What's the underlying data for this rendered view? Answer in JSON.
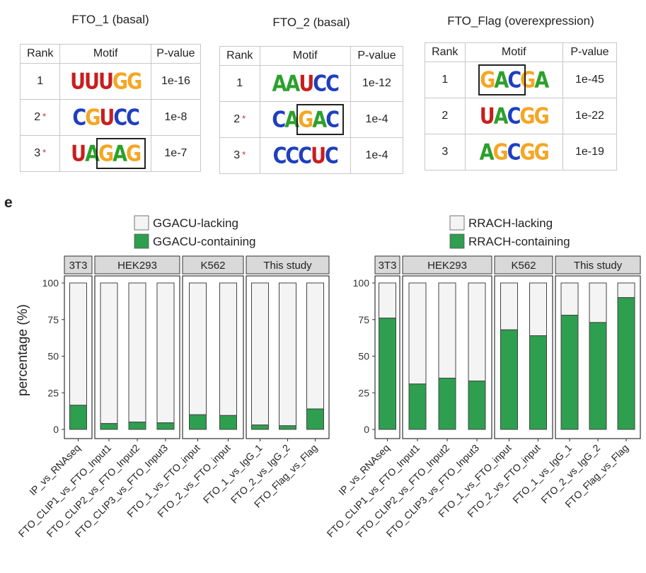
{
  "panel_label": "e",
  "motif_tables": [
    {
      "title": "FTO_1 (basal)",
      "headers": [
        "Rank",
        "Motif",
        "P-value"
      ],
      "rows": [
        {
          "rank": "1",
          "star": "",
          "motif": "UUUGG",
          "pvalue": "1e-16"
        },
        {
          "rank": "2",
          "star": "*",
          "motif": "CGUCC",
          "pvalue": "1e-8"
        },
        {
          "rank": "3",
          "star": "*",
          "motif": "UAGAG",
          "pvalue": "1e-7"
        }
      ]
    },
    {
      "title": "FTO_2 (basal)",
      "headers": [
        "Rank",
        "Motif",
        "P-value"
      ],
      "rows": [
        {
          "rank": "1",
          "star": "",
          "motif": "AAUCC",
          "pvalue": "1e-12"
        },
        {
          "rank": "2",
          "star": "*",
          "motif": "CAGAC",
          "pvalue": "1e-4"
        },
        {
          "rank": "3",
          "star": "*",
          "motif": "CCCUC",
          "pvalue": "1e-4"
        }
      ]
    },
    {
      "title": "FTO_Flag (overexpression)",
      "headers": [
        "Rank",
        "Motif",
        "P-value"
      ],
      "rows": [
        {
          "rank": "1",
          "star": "",
          "motif": "GACGA",
          "pvalue": "1e-45"
        },
        {
          "rank": "2",
          "star": "",
          "motif": "UACGG",
          "pvalue": "1e-22"
        },
        {
          "rank": "3",
          "star": "",
          "motif": "AGCGG",
          "pvalue": "1e-19"
        }
      ]
    }
  ],
  "nucleotide_colors": {
    "A": "#2ca02c",
    "C": "#1f3fbf",
    "G": "#f5a623",
    "U": "#c81e1e"
  },
  "chart_data": [
    {
      "type": "bar",
      "stacked": true,
      "legend": [
        "GGACU-lacking",
        "GGACU-containing"
      ],
      "legend_position": "top",
      "ylabel": "percentage (%)",
      "ylim": [
        0,
        100
      ],
      "yticks": [
        "0",
        "25",
        "50",
        "75",
        "100"
      ],
      "facets": [
        {
          "label": "3T3",
          "categories": [
            "IP_vs_RNAseq"
          ]
        },
        {
          "label": "HEK293",
          "categories": [
            "FTO_CLIP1_vs_FTO_Input1",
            "FTO_CLIP2_vs_FTO_Input2",
            "FTO_CLIP3_vs_FTO_Input3"
          ]
        },
        {
          "label": "K562",
          "categories": [
            "FTO_1_vs_FTO_input",
            "FTO_2_vs_FTO_input"
          ]
        },
        {
          "label": "This study",
          "categories": [
            "FTO_1_vs_IgG_1",
            "FTO_2_vs_IgG_2",
            "FTO_Flag_vs_Flag"
          ]
        }
      ],
      "series": [
        {
          "name": "GGACU-containing",
          "color": "#2e9e4f",
          "values": [
            16.5,
            4,
            5,
            4.5,
            10,
            9.5,
            3,
            2.5,
            14
          ]
        },
        {
          "name": "GGACU-lacking",
          "color": "#f4f4f4",
          "values": [
            83.5,
            96,
            95,
            95.5,
            90,
            90.5,
            97,
            97.5,
            86
          ]
        }
      ]
    },
    {
      "type": "bar",
      "stacked": true,
      "legend": [
        "RRACH-lacking",
        "RRACH-containing"
      ],
      "legend_position": "top",
      "ylabel": "",
      "ylim": [
        0,
        100
      ],
      "yticks": [
        "0",
        "25",
        "50",
        "75",
        "100"
      ],
      "facets": [
        {
          "label": "3T3",
          "categories": [
            "IP_vs_RNAseq"
          ]
        },
        {
          "label": "HEK293",
          "categories": [
            "FTO_CLIP1_vs_FTO_Input1",
            "FTO_CLIP2_vs_FTO_Input2",
            "FTO_CLIP3_vs_FTO_Input3"
          ]
        },
        {
          "label": "K562",
          "categories": [
            "FTO_1_vs_FTO_input",
            "FTO_2_vs_FTO_input"
          ]
        },
        {
          "label": "This study",
          "categories": [
            "FTO_1_vs_IgG_1",
            "FTO_2_vs_IgG_2",
            "FTO_Flag_vs_Flag"
          ]
        }
      ],
      "series": [
        {
          "name": "RRACH-containing",
          "color": "#2e9e4f",
          "values": [
            76,
            31,
            35,
            33,
            68,
            64,
            78,
            73,
            90
          ]
        },
        {
          "name": "RRACH-lacking",
          "color": "#f4f4f4",
          "values": [
            24,
            69,
            65,
            67,
            32,
            36,
            22,
            27,
            10
          ]
        }
      ]
    }
  ]
}
